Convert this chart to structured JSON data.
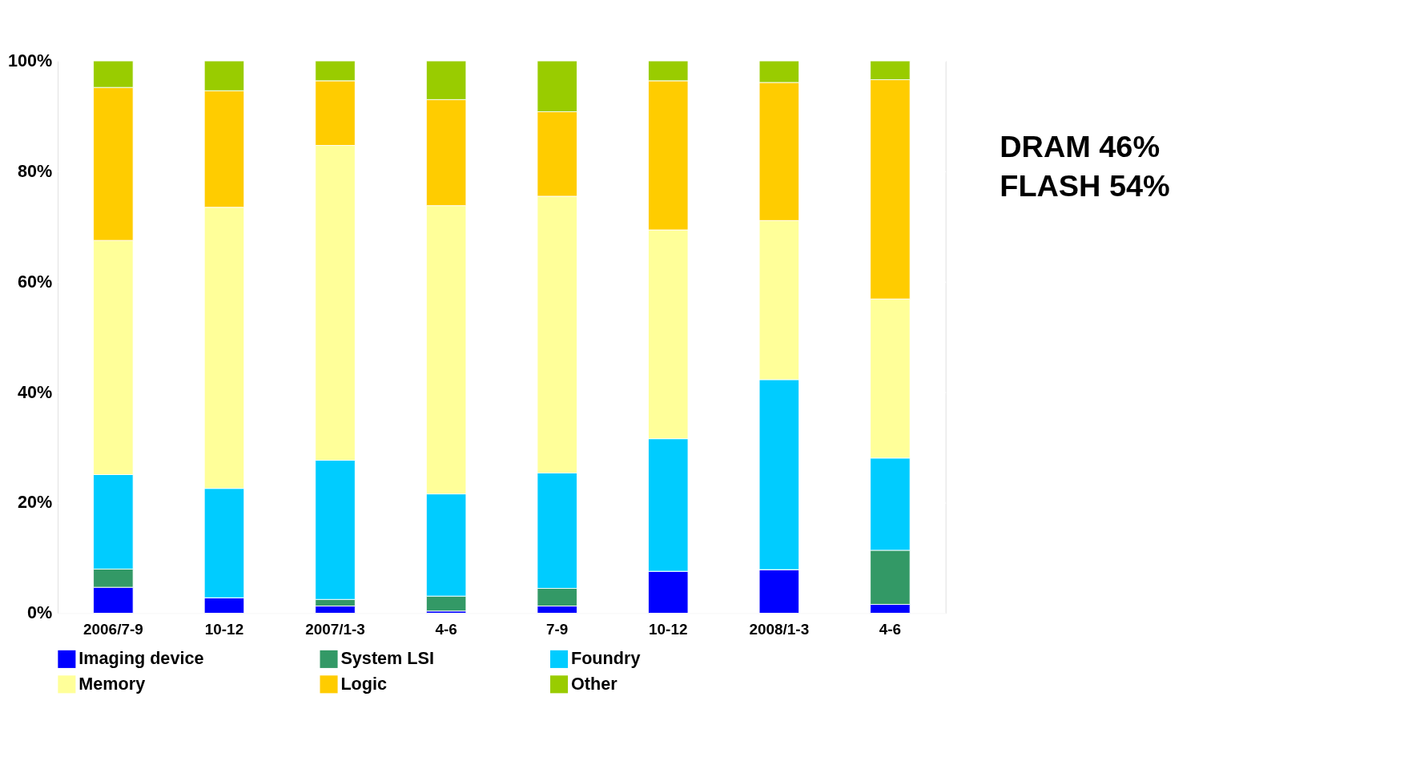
{
  "chart_data": {
    "type": "bar",
    "stacked": true,
    "categories": [
      "2006/7-9",
      "10-12",
      "2007/1-3",
      "4-6",
      "7-9",
      "10-12",
      "2008/1-3",
      "4-6"
    ],
    "series": [
      {
        "name": "Imaging device",
        "color": "#0000ff",
        "values": [
          4.7,
          2.8,
          1.3,
          0.4,
          1.3,
          7.6,
          7.9,
          1.6
        ]
      },
      {
        "name": "System LSI",
        "color": "#339966",
        "values": [
          3.3,
          0,
          1.2,
          2.7,
          3.2,
          0,
          0,
          9.8
        ]
      },
      {
        "name": "Foundry",
        "color": "#00ccff",
        "values": [
          17.1,
          19.8,
          25.2,
          18.5,
          20.9,
          24.0,
          34.4,
          16.7
        ]
      },
      {
        "name": "Memory",
        "color": "#ffff99",
        "values": [
          42.4,
          50.9,
          57.0,
          52.2,
          50.1,
          37.8,
          28.8,
          28.8
        ]
      },
      {
        "name": "Logic",
        "color": "#ffcc00",
        "values": [
          27.7,
          21.1,
          11.7,
          19.2,
          15.3,
          27.0,
          25.0,
          39.7
        ]
      },
      {
        "name": "Other",
        "color": "#99cc00",
        "values": [
          4.8,
          5.4,
          3.6,
          7.0,
          9.2,
          3.6,
          3.9,
          3.4
        ]
      }
    ],
    "ylim": [
      0,
      100
    ],
    "yticks": [
      {
        "value": 0,
        "label": "0%"
      },
      {
        "value": 20,
        "label": "20%"
      },
      {
        "value": 40,
        "label": "40%"
      },
      {
        "value": 60,
        "label": "60%"
      },
      {
        "value": 80,
        "label": "80%"
      },
      {
        "value": 100,
        "label": "100%"
      }
    ],
    "grid": "y",
    "legend": "bottom",
    "annotations": [
      "DRAM    46%",
      "FLASH   54%"
    ]
  }
}
